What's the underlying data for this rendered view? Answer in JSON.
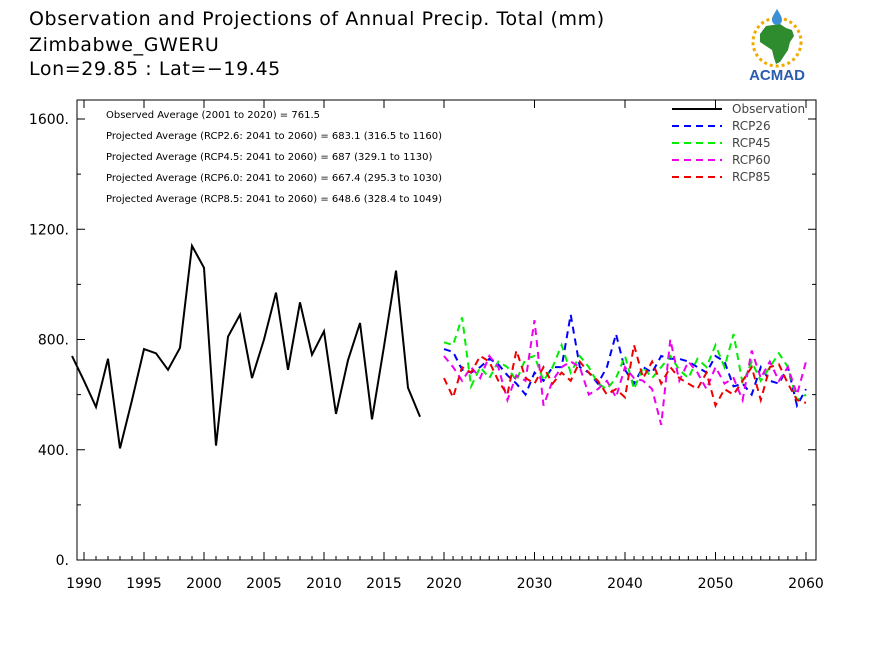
{
  "header": {
    "title": "Observation and Projections of Annual Precip. Total (mm)",
    "location": "Zimbabwe_GWERU",
    "coords": "Lon=29.85 : Lat=−19.45"
  },
  "logo": {
    "text": "ACMAD",
    "icon": "africa-map-icon",
    "colors": {
      "africa": "#2e8b2e",
      "ring": "#f2a900",
      "drop": "#3a8fd6",
      "text": "#2a5db0"
    }
  },
  "annotations": [
    "Observed Average (2001 to 2020) = 761.5",
    "Projected Average (RCP2.6: 2041 to 2060) = 683.1 (316.5 to 1160)",
    "Projected Average (RCP4.5: 2041 to 2060) = 687 (329.1 to 1130)",
    "Projected Average (RCP6.0: 2041 to 2060) = 667.4 (295.3 to 1030)",
    "Projected Average (RCP8.5: 2041 to 2060) = 648.6 (328.4 to 1049)"
  ],
  "chart_data": {
    "type": "line",
    "xlim": [
      1989,
      2060
    ],
    "ylim": [
      0,
      1650
    ],
    "x_ticks": [
      1990,
      1995,
      2000,
      2005,
      2010,
      2015,
      2020,
      2030,
      2040,
      2050,
      2060
    ],
    "x_tick_labels": [
      "1990",
      "1995",
      "2000",
      "2005",
      "2010",
      "2015",
      "2020",
      "2030",
      "2040",
      "2050",
      "2060"
    ],
    "y_ticks": [
      0,
      400,
      800,
      1200,
      1600
    ],
    "y_tick_labels": [
      "0.",
      "400.",
      "800.",
      "1200.",
      "1600."
    ],
    "legend_position": "top-right",
    "series": [
      {
        "name": "Observation",
        "color": "#000000",
        "dash": "solid",
        "x": [
          1989,
          1990,
          1991,
          1992,
          1993,
          1994,
          1995,
          1996,
          1997,
          1998,
          1999,
          2000,
          2001,
          2002,
          2003,
          2004,
          2005,
          2006,
          2007,
          2008,
          2009,
          2010,
          2011,
          2012,
          2013,
          2014,
          2015,
          2016,
          2017,
          2018,
          2019
        ],
        "y": [
          740,
          650,
          555,
          730,
          405,
          580,
          765,
          750,
          690,
          770,
          1140,
          1060,
          415,
          810,
          890,
          660,
          800,
          970,
          690,
          935,
          745,
          830,
          530,
          725,
          860,
          510,
          775,
          1050,
          625,
          520,
          null
        ]
      },
      {
        "name": "RCP26",
        "color": "#0000ff",
        "dash": "dashed",
        "x": [
          2020,
          2021,
          2022,
          2023,
          2024,
          2025,
          2026,
          2027,
          2028,
          2029,
          2030,
          2031,
          2032,
          2033,
          2034,
          2035,
          2036,
          2037,
          2038,
          2039,
          2040,
          2041,
          2042,
          2043,
          2044,
          2045,
          2046,
          2047,
          2048,
          2049,
          2050,
          2051,
          2052,
          2053,
          2054,
          2055,
          2056,
          2057,
          2058,
          2059,
          2060
        ],
        "y": [
          765,
          755,
          690,
          680,
          700,
          730,
          710,
          670,
          640,
          600,
          680,
          650,
          700,
          700,
          890,
          700,
          680,
          640,
          700,
          820,
          690,
          640,
          700,
          680,
          740,
          730,
          730,
          720,
          700,
          680,
          740,
          720,
          630,
          640,
          600,
          700,
          650,
          640,
          700,
          560,
          620
        ]
      },
      {
        "name": "RCP45",
        "color": "#00ee00",
        "dash": "dashed",
        "x": [
          2020,
          2021,
          2022,
          2023,
          2024,
          2025,
          2026,
          2027,
          2028,
          2029,
          2030,
          2031,
          2032,
          2033,
          2034,
          2035,
          2036,
          2037,
          2038,
          2039,
          2040,
          2041,
          2042,
          2043,
          2044,
          2045,
          2046,
          2047,
          2048,
          2049,
          2050,
          2051,
          2052,
          2053,
          2054,
          2055,
          2056,
          2057,
          2058,
          2059,
          2060
        ],
        "y": [
          790,
          780,
          880,
          630,
          700,
          660,
          720,
          700,
          650,
          730,
          740,
          650,
          700,
          780,
          680,
          740,
          700,
          640,
          620,
          660,
          740,
          620,
          700,
          660,
          700,
          740,
          690,
          660,
          730,
          700,
          780,
          700,
          820,
          640,
          720,
          650,
          700,
          750,
          700,
          580,
          600
        ]
      },
      {
        "name": "RCP60",
        "color": "#ee00ee",
        "dash": "dashed",
        "x": [
          2020,
          2021,
          2022,
          2023,
          2024,
          2025,
          2026,
          2027,
          2028,
          2029,
          2030,
          2031,
          2032,
          2033,
          2034,
          2035,
          2036,
          2037,
          2038,
          2039,
          2040,
          2041,
          2042,
          2043,
          2044,
          2045,
          2046,
          2047,
          2048,
          2049,
          2050,
          2051,
          2052,
          2053,
          2054,
          2055,
          2056,
          2057,
          2058,
          2059,
          2060
        ],
        "y": [
          740,
          700,
          650,
          700,
          660,
          740,
          700,
          580,
          670,
          650,
          870,
          560,
          650,
          700,
          720,
          700,
          600,
          620,
          650,
          590,
          700,
          660,
          650,
          620,
          490,
          800,
          650,
          720,
          680,
          620,
          700,
          640,
          660,
          580,
          760,
          660,
          720,
          650,
          700,
          600,
          720
        ]
      },
      {
        "name": "RCP85",
        "color": "#ee0000",
        "dash": "dashed",
        "x": [
          2020,
          2021,
          2022,
          2023,
          2024,
          2025,
          2026,
          2027,
          2028,
          2029,
          2030,
          2031,
          2032,
          2033,
          2034,
          2035,
          2036,
          2037,
          2038,
          2039,
          2040,
          2041,
          2042,
          2043,
          2044,
          2045,
          2046,
          2047,
          2048,
          2049,
          2050,
          2051,
          2052,
          2053,
          2054,
          2055,
          2056,
          2057,
          2058,
          2059,
          2060
        ],
        "y": [
          660,
          590,
          700,
          680,
          740,
          720,
          650,
          600,
          760,
          660,
          640,
          700,
          640,
          680,
          650,
          720,
          680,
          650,
          600,
          620,
          590,
          780,
          660,
          720,
          640,
          700,
          660,
          640,
          620,
          680,
          560,
          620,
          600,
          650,
          700,
          580,
          700,
          710,
          640,
          580,
          570
        ]
      }
    ]
  }
}
